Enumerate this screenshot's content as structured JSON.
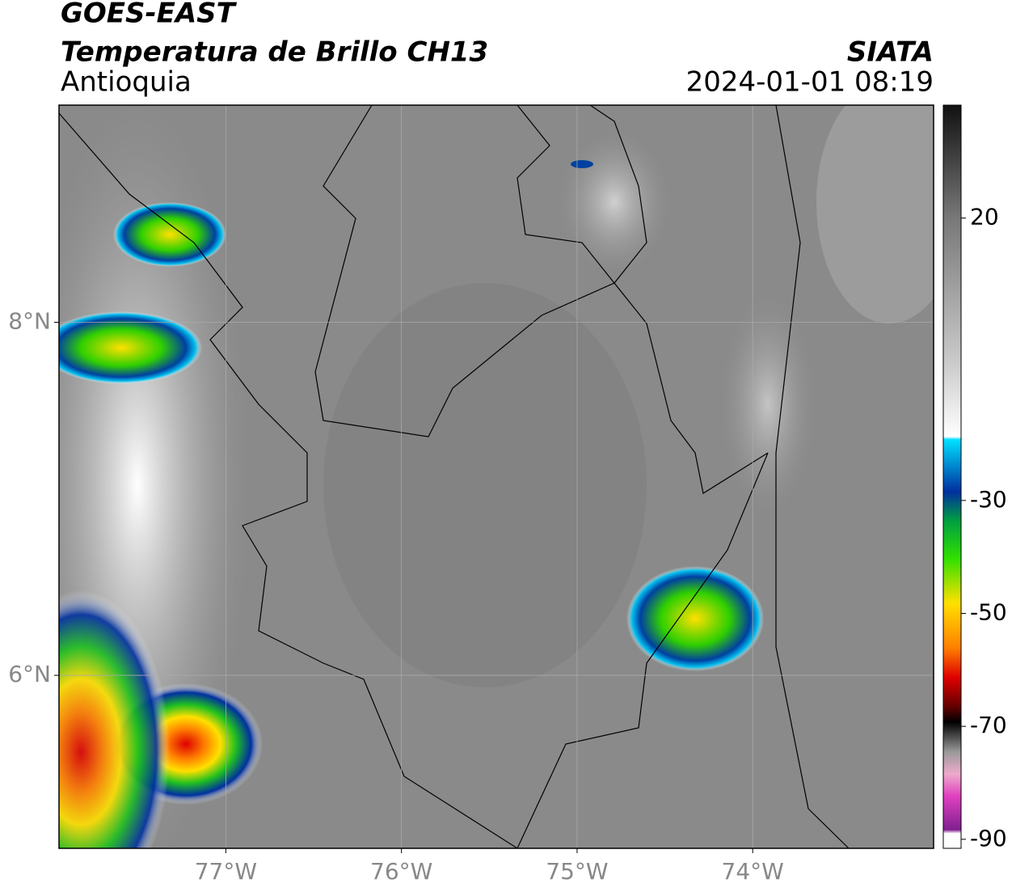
{
  "header": {
    "title": "GOES-EAST",
    "subtitle": "Temperatura de Brillo CH13",
    "region": "Antioquia",
    "source": "SIATA",
    "datetime": "2024-01-01 08:19"
  },
  "map": {
    "xlim": [
      -77.95,
      -72.97
    ],
    "ylim": [
      5.02,
      9.23
    ],
    "xticks": [
      {
        "value": -77,
        "label": "77°W"
      },
      {
        "value": -76,
        "label": "76°W"
      },
      {
        "value": -75,
        "label": "75°W"
      },
      {
        "value": -74,
        "label": "74°W"
      }
    ],
    "yticks": [
      {
        "value": 8,
        "label": "8°N"
      },
      {
        "value": 6,
        "label": "6°N"
      }
    ],
    "grid": true
  },
  "colorbar": {
    "lim": [
      -91.6,
      40
    ],
    "ticks": [
      20,
      -30,
      -50,
      -70,
      -90
    ]
  }
}
